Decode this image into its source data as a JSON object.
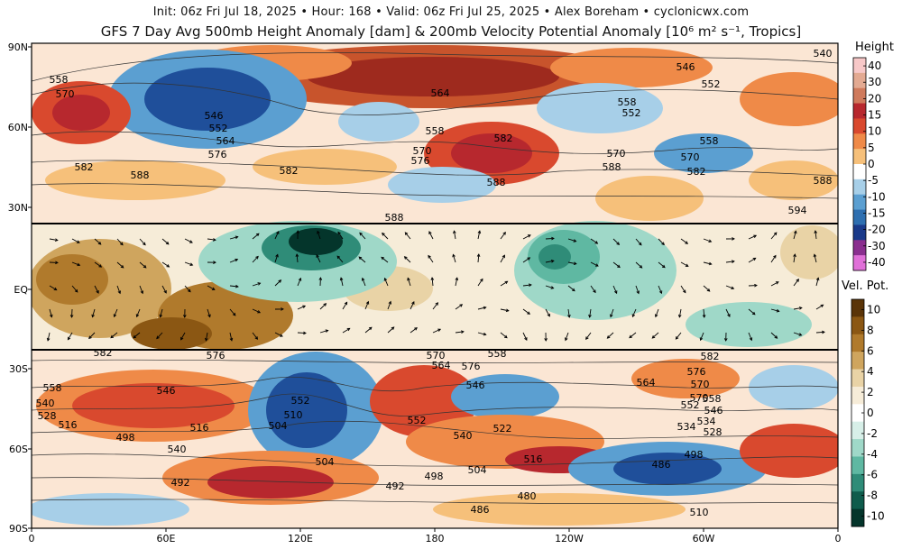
{
  "header": {
    "line1": "Init: 06z Fri Jul 18, 2025  •  Hour: 168  •  Valid: 06z Fri Jul 25, 2025  •  Alex Boreham  •  cyclonicwx.com",
    "line2": "GFS 7 Day Avg 500mb Height Anomaly [dam] & 200mb Velocity Potential Anomaly [10⁶ m² s⁻¹, Tropics]"
  },
  "map": {
    "lat_labels": [
      "90N",
      "60N",
      "30N",
      "EQ",
      "30S",
      "60S",
      "90S"
    ],
    "lon_labels": [
      "0",
      "60E",
      "120E",
      "180",
      "120W",
      "60W",
      "0"
    ],
    "contour_labels": [
      "558",
      "540",
      "570",
      "546",
      "552",
      "564",
      "546",
      "552",
      "558",
      "582",
      "564",
      "558",
      "552",
      "582",
      "576",
      "582",
      "570",
      "576",
      "588",
      "570",
      "588",
      "588",
      "558",
      "570",
      "582",
      "588",
      "594",
      "588",
      "582",
      "576",
      "570",
      "564",
      "558",
      "564",
      "576",
      "582",
      "546",
      "570",
      "576",
      "558",
      "570",
      "546",
      "540",
      "552",
      "528",
      "558",
      "546",
      "552",
      "534",
      "516",
      "510",
      "504",
      "498",
      "540",
      "522",
      "528",
      "516",
      "534",
      "540",
      "552",
      "504",
      "516",
      "504",
      "498",
      "492",
      "486",
      "498",
      "480",
      "486",
      "492",
      "510"
    ]
  },
  "height_colorbar": {
    "title": "Height",
    "labels": [
      "40",
      "30",
      "20",
      "15",
      "10",
      "5",
      "0",
      "-5",
      "-10",
      "-15",
      "-20",
      "-30",
      "-40"
    ],
    "colors": [
      "#f7c8c8",
      "#e3aa92",
      "#cf7a5c",
      "#b7282e",
      "#d9492e",
      "#ef8a48",
      "#f6c07a",
      "#ffffff",
      "#a7cfe8",
      "#5b9fd1",
      "#2e6fb0",
      "#1a3a8a",
      "#8a2f8f",
      "#e070d8"
    ]
  },
  "vp_colorbar": {
    "title": "Vel. Pot.",
    "labels": [
      "10",
      "8",
      "6",
      "4",
      "2",
      "0",
      "-2",
      "-4",
      "-6",
      "-8",
      "-10"
    ],
    "colors": [
      "#5a3408",
      "#8b5713",
      "#b07a2c",
      "#cfa55e",
      "#e9d3a6",
      "#f6ecd8",
      "#ffffff",
      "#d7efe8",
      "#9fd8c8",
      "#5fb8a2",
      "#2f8c78",
      "#0f5c4c",
      "#04352b"
    ]
  }
}
